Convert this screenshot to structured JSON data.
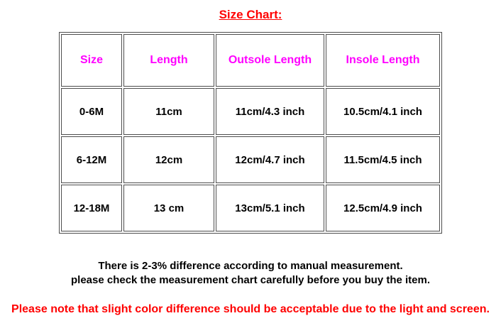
{
  "title": {
    "text": "Size Chart:",
    "color": "#ff0000"
  },
  "size_table": {
    "header_color": "#ff00ff",
    "border_color": "#4d4d4d",
    "headers": [
      "Size",
      "Length",
      "Outsole Length",
      "Insole Length"
    ],
    "rows": [
      [
        "0-6M",
        "11cm",
        "11cm/4.3 inch",
        "10.5cm/4.1 inch"
      ],
      [
        "6-12M",
        "12cm",
        "12cm/4.7 inch",
        "11.5cm/4.5 inch"
      ],
      [
        "12-18M",
        "13 cm",
        "13cm/5.1 inch",
        "12.5cm/4.9 inch"
      ]
    ]
  },
  "notes": {
    "measurement_line1": "There is 2-3% difference according to manual measurement.",
    "measurement_line2": "please check the measurement chart carefully before you buy the item.",
    "color_notice": "Please note that slight color difference should be acceptable due to the light and screen.",
    "color_notice_color": "#ff0000"
  }
}
